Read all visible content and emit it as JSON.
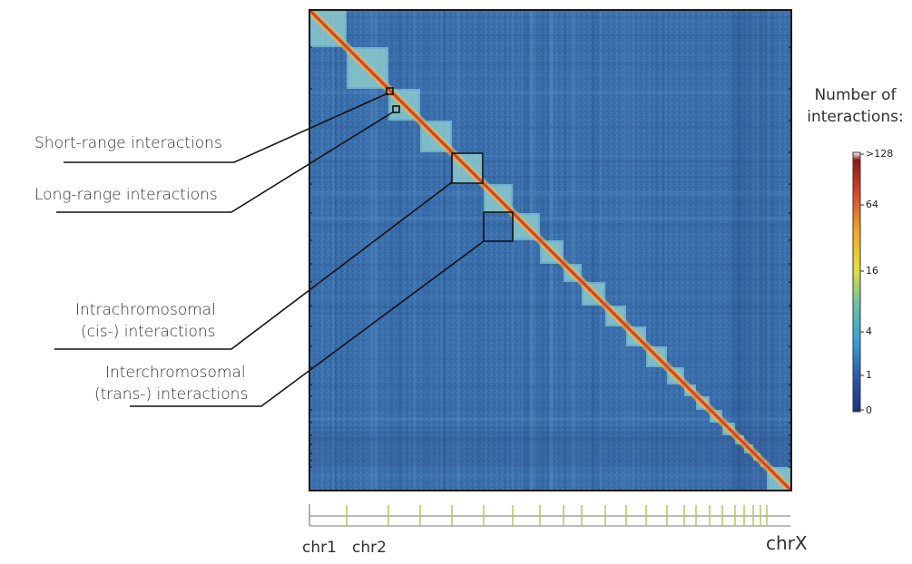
{
  "annotations": {
    "short_range": "Short-range interactions",
    "long_range": "Long-range interactions",
    "intra_line1": "Intrachromosomal",
    "intra_line2": "(cis-) interactions",
    "inter_line1": "Interchromosomal",
    "inter_line2": "(trans-) interactions"
  },
  "legend": {
    "title_line1": "Number of",
    "title_line2": "interactions:",
    "ticks": [
      ">128",
      "64",
      "16",
      "4",
      "1",
      "0"
    ]
  },
  "chromosome_axis": {
    "first_label": "chr1",
    "second_label": "chr2",
    "last_label": "chrX"
  },
  "colors": {
    "background_blue": "#3a6fae",
    "diagonal_red": "#d73a2a",
    "block_cyan": "#7fc6d6",
    "chr_tick_color": "#b7c45a"
  }
}
